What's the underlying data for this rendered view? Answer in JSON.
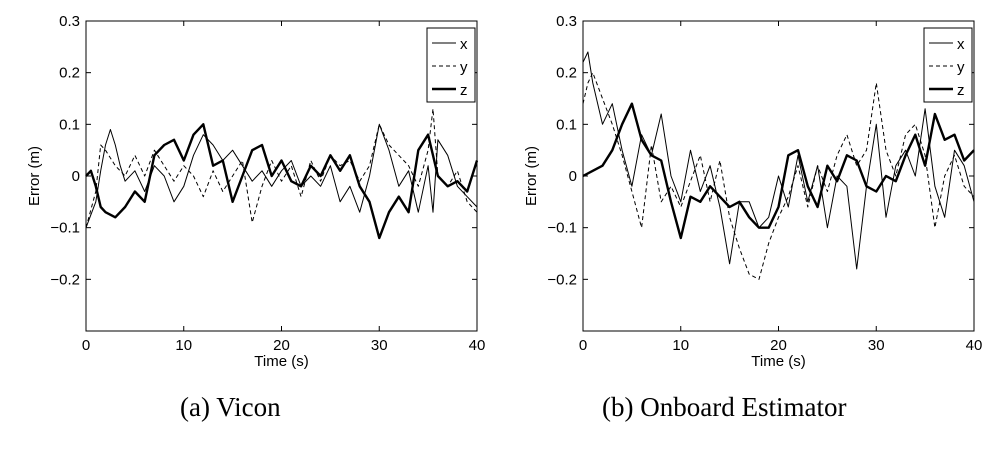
{
  "chart_data": [
    {
      "type": "line",
      "caption": "(a)  Vicon",
      "xlabel": "Time (s)",
      "ylabel": "Error (m)",
      "xlim": [
        0,
        40
      ],
      "ylim": [
        -0.3,
        0.3
      ],
      "xticks": [
        "0",
        "10",
        "20",
        "30",
        "40"
      ],
      "yticks": [
        "-0.2",
        "-0.1",
        "0",
        "0.1",
        "0.2",
        "0.3"
      ],
      "legend": "top-right",
      "grid": false,
      "series": [
        {
          "name": "x",
          "style": "thin-solid",
          "x": [
            0,
            1,
            1.5,
            2,
            2.5,
            3,
            3.5,
            4,
            5,
            6,
            7,
            8,
            9,
            10,
            11,
            12,
            13,
            14,
            15,
            16,
            17,
            18,
            19,
            20,
            21,
            22,
            23,
            24,
            25,
            26,
            27,
            28,
            29,
            30,
            31,
            32,
            33,
            34,
            35,
            35.5,
            36,
            37,
            38,
            39,
            40
          ],
          "y": [
            -0.1,
            -0.05,
            0.01,
            0.06,
            0.09,
            0.06,
            0.02,
            -0.01,
            0.01,
            -0.03,
            0.02,
            0.0,
            -0.05,
            -0.02,
            0.04,
            0.08,
            0.06,
            0.03,
            0.05,
            0.02,
            -0.01,
            0.01,
            -0.02,
            0.01,
            0.03,
            -0.02,
            0.0,
            -0.02,
            0.02,
            -0.05,
            -0.02,
            -0.07,
            0.0,
            0.1,
            0.05,
            -0.02,
            0.01,
            -0.07,
            0.02,
            -0.07,
            0.07,
            0.04,
            -0.02,
            -0.04,
            -0.06
          ]
        },
        {
          "name": "y",
          "style": "dashed",
          "x": [
            0,
            1,
            1.5,
            2,
            3,
            4,
            5,
            6,
            7,
            8,
            9,
            10,
            11,
            12,
            13,
            14,
            15,
            16,
            17,
            18,
            19,
            20,
            21,
            22,
            23,
            24,
            25,
            26,
            27,
            28,
            29,
            30,
            31,
            32,
            33,
            34,
            35,
            35.5,
            36,
            37,
            38,
            39,
            40
          ],
          "y": [
            -0.1,
            -0.03,
            0.06,
            0.05,
            0.02,
            0.0,
            0.04,
            0.0,
            0.05,
            0.02,
            -0.01,
            0.02,
            0.0,
            -0.04,
            0.01,
            -0.03,
            0.0,
            0.03,
            -0.09,
            -0.02,
            0.03,
            -0.01,
            0.02,
            -0.04,
            0.03,
            -0.01,
            0.04,
            0.02,
            0.03,
            -0.01,
            0.02,
            0.1,
            0.06,
            0.04,
            0.02,
            -0.02,
            0.05,
            0.13,
            0.0,
            -0.02,
            0.01,
            -0.05,
            -0.07
          ]
        },
        {
          "name": "z",
          "style": "thick-solid",
          "x": [
            0,
            0.5,
            1,
            1.5,
            2,
            3,
            4,
            5,
            6,
            7,
            8,
            9,
            10,
            11,
            12,
            13,
            14,
            15,
            16,
            17,
            18,
            19,
            20,
            21,
            22,
            23,
            24,
            25,
            26,
            27,
            28,
            29,
            30,
            31,
            32,
            33,
            34,
            35,
            36,
            37,
            38,
            39,
            40
          ],
          "y": [
            0.0,
            0.01,
            -0.02,
            -0.06,
            -0.07,
            -0.08,
            -0.06,
            -0.03,
            -0.05,
            0.04,
            0.06,
            0.07,
            0.03,
            0.08,
            0.1,
            0.02,
            0.03,
            -0.05,
            0.0,
            0.05,
            0.06,
            0.0,
            0.03,
            -0.01,
            -0.02,
            0.02,
            0.0,
            0.04,
            0.01,
            0.04,
            -0.02,
            -0.05,
            -0.12,
            -0.07,
            -0.04,
            -0.07,
            0.05,
            0.08,
            0.0,
            -0.02,
            -0.01,
            -0.03,
            0.03
          ]
        }
      ]
    },
    {
      "type": "line",
      "caption": "(b)  Onboard Estimator",
      "xlabel": "Time (s)",
      "ylabel": "Error (m)",
      "xlim": [
        0,
        40
      ],
      "ylim": [
        -0.3,
        0.3
      ],
      "xticks": [
        "0",
        "10",
        "20",
        "30",
        "40"
      ],
      "yticks": [
        "-0.2",
        "-0.1",
        "0",
        "0.1",
        "0.2",
        "0.3"
      ],
      "legend": "top-right",
      "grid": false,
      "series": [
        {
          "name": "x",
          "style": "thin-solid",
          "x": [
            0,
            0.5,
            1,
            2,
            3,
            4,
            5,
            6,
            7,
            8,
            9,
            10,
            11,
            12,
            13,
            14,
            15,
            16,
            17,
            18,
            19,
            20,
            21,
            22,
            23,
            24,
            25,
            26,
            27,
            28,
            29,
            30,
            31,
            32,
            33,
            34,
            35,
            36,
            37,
            38,
            39,
            40
          ],
          "y": [
            0.22,
            0.24,
            0.18,
            0.1,
            0.14,
            0.05,
            -0.02,
            0.08,
            0.04,
            0.12,
            0.0,
            -0.05,
            0.05,
            -0.03,
            0.02,
            -0.06,
            -0.17,
            -0.05,
            -0.05,
            -0.1,
            -0.08,
            0.0,
            -0.06,
            0.04,
            -0.05,
            0.02,
            -0.1,
            0.0,
            -0.02,
            -0.18,
            -0.02,
            0.1,
            -0.08,
            0.02,
            0.05,
            0.0,
            0.13,
            -0.02,
            -0.08,
            0.05,
            0.02,
            -0.05
          ]
        },
        {
          "name": "y",
          "style": "dashed",
          "x": [
            0,
            0.5,
            1,
            2,
            3,
            4,
            5,
            6,
            7,
            8,
            9,
            10,
            11,
            12,
            13,
            14,
            15,
            16,
            17,
            18,
            19,
            20,
            21,
            22,
            23,
            24,
            25,
            26,
            27,
            28,
            29,
            30,
            31,
            32,
            33,
            34,
            35,
            36,
            37,
            38,
            39,
            40
          ],
          "y": [
            0.14,
            0.18,
            0.2,
            0.15,
            0.1,
            0.04,
            -0.03,
            -0.1,
            0.06,
            -0.05,
            -0.02,
            -0.06,
            -0.01,
            0.04,
            -0.05,
            0.03,
            -0.08,
            -0.14,
            -0.19,
            -0.2,
            -0.13,
            -0.08,
            -0.04,
            0.02,
            -0.06,
            0.02,
            -0.03,
            0.04,
            0.08,
            0.02,
            0.05,
            0.18,
            0.05,
            0.0,
            0.08,
            0.1,
            0.04,
            -0.1,
            0.0,
            0.04,
            -0.02,
            -0.04
          ]
        },
        {
          "name": "z",
          "style": "thick-solid",
          "x": [
            0,
            1,
            2,
            3,
            4,
            5,
            6,
            7,
            8,
            9,
            10,
            11,
            12,
            13,
            14,
            15,
            16,
            17,
            18,
            19,
            20,
            21,
            22,
            23,
            24,
            25,
            26,
            27,
            28,
            29,
            30,
            31,
            32,
            33,
            34,
            35,
            36,
            37,
            38,
            39,
            40
          ],
          "y": [
            0.0,
            0.01,
            0.02,
            0.05,
            0.1,
            0.14,
            0.07,
            0.04,
            0.03,
            -0.05,
            -0.12,
            -0.04,
            -0.05,
            -0.02,
            -0.04,
            -0.06,
            -0.05,
            -0.08,
            -0.1,
            -0.1,
            -0.06,
            0.04,
            0.05,
            -0.02,
            -0.06,
            0.02,
            -0.01,
            0.04,
            0.03,
            -0.02,
            -0.03,
            0.0,
            -0.01,
            0.04,
            0.08,
            0.02,
            0.12,
            0.07,
            0.08,
            0.03,
            0.05
          ]
        }
      ]
    }
  ]
}
